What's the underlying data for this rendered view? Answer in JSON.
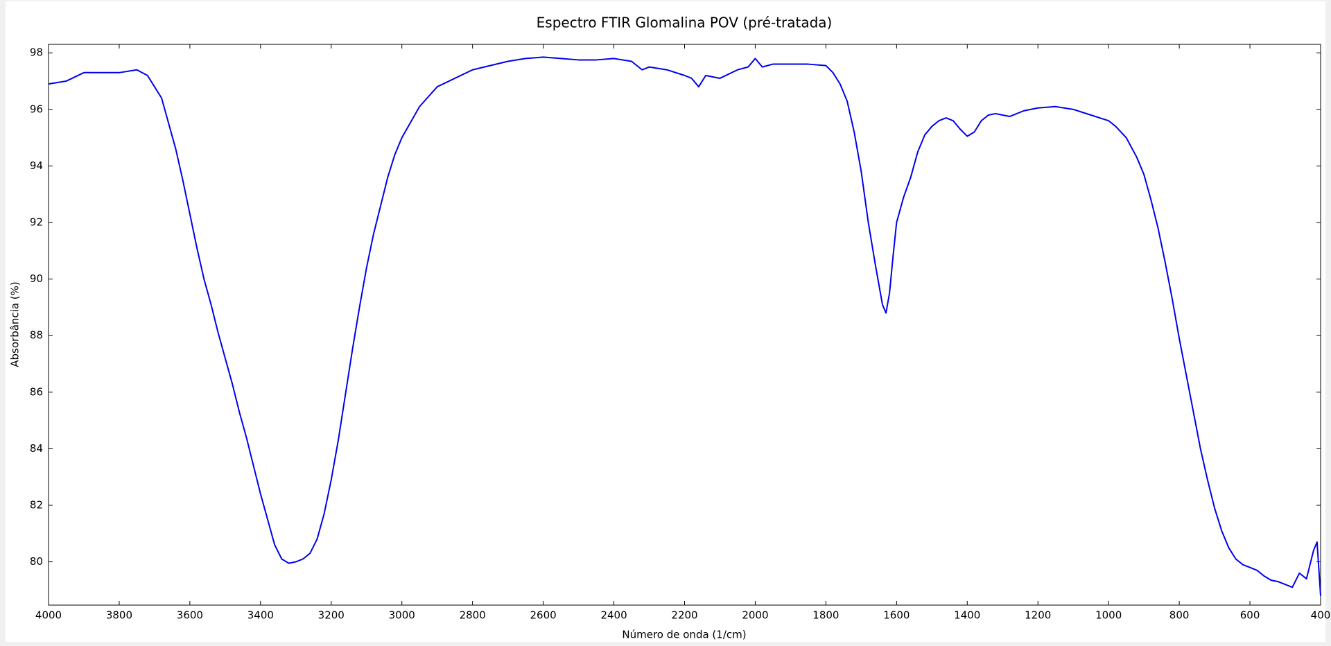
{
  "chart_data": {
    "type": "line",
    "title": "Espectro FTIR Glomalina POV (pré-tratada)",
    "x_label": "Número de onda (1/cm)",
    "y_label": "Absorbância (%)",
    "x": [
      4000,
      3950,
      3900,
      3850,
      3800,
      3750,
      3720,
      3700,
      3680,
      3660,
      3640,
      3620,
      3600,
      3580,
      3560,
      3540,
      3520,
      3500,
      3480,
      3460,
      3440,
      3420,
      3400,
      3380,
      3360,
      3340,
      3320,
      3300,
      3280,
      3260,
      3240,
      3220,
      3200,
      3180,
      3160,
      3140,
      3120,
      3100,
      3080,
      3060,
      3040,
      3020,
      3000,
      2950,
      2900,
      2850,
      2800,
      2750,
      2700,
      2650,
      2600,
      2550,
      2500,
      2450,
      2400,
      2350,
      2320,
      2300,
      2250,
      2200,
      2180,
      2160,
      2140,
      2100,
      2050,
      2020,
      2000,
      1980,
      1950,
      1900,
      1850,
      1800,
      1780,
      1760,
      1740,
      1720,
      1700,
      1680,
      1660,
      1640,
      1630,
      1620,
      1610,
      1600,
      1580,
      1560,
      1540,
      1520,
      1500,
      1480,
      1460,
      1440,
      1420,
      1400,
      1380,
      1360,
      1340,
      1320,
      1300,
      1280,
      1260,
      1240,
      1200,
      1150,
      1100,
      1050,
      1000,
      980,
      950,
      920,
      900,
      880,
      860,
      840,
      820,
      800,
      780,
      760,
      740,
      720,
      700,
      680,
      660,
      640,
      620,
      600,
      580,
      560,
      540,
      520,
      500,
      480,
      460,
      440,
      420,
      410,
      400
    ],
    "series": [
      {
        "name": "Glomalina POV",
        "color": "#0000ee",
        "values": [
          96.9,
          97.0,
          97.3,
          97.3,
          97.3,
          97.4,
          97.2,
          96.8,
          96.4,
          95.5,
          94.6,
          93.5,
          92.3,
          91.1,
          90.0,
          89.1,
          88.1,
          87.2,
          86.3,
          85.3,
          84.4,
          83.4,
          82.4,
          81.5,
          80.6,
          80.1,
          79.95,
          80.0,
          80.1,
          80.3,
          80.8,
          81.7,
          82.9,
          84.3,
          85.9,
          87.5,
          89.0,
          90.4,
          91.6,
          92.6,
          93.6,
          94.4,
          95.0,
          96.1,
          96.8,
          97.1,
          97.4,
          97.55,
          97.7,
          97.8,
          97.85,
          97.8,
          97.75,
          97.75,
          97.8,
          97.7,
          97.4,
          97.5,
          97.4,
          97.2,
          97.1,
          96.8,
          97.2,
          97.1,
          97.4,
          97.5,
          97.8,
          97.5,
          97.6,
          97.6,
          97.6,
          97.55,
          97.3,
          96.9,
          96.3,
          95.2,
          93.8,
          92.0,
          90.5,
          89.1,
          88.8,
          89.5,
          90.8,
          92.0,
          92.9,
          93.6,
          94.5,
          95.1,
          95.4,
          95.6,
          95.7,
          95.6,
          95.3,
          95.05,
          95.2,
          95.6,
          95.8,
          95.85,
          95.8,
          95.75,
          95.85,
          95.95,
          96.05,
          96.1,
          96.0,
          95.8,
          95.6,
          95.4,
          95.0,
          94.3,
          93.7,
          92.8,
          91.8,
          90.6,
          89.3,
          87.9,
          86.6,
          85.3,
          84.0,
          82.9,
          81.9,
          81.1,
          80.5,
          80.1,
          79.9,
          79.8,
          79.7,
          79.5,
          79.35,
          79.3,
          79.2,
          79.1,
          79.6,
          79.4,
          80.4,
          80.7,
          78.8
        ]
      }
    ],
    "xlim": [
      4000,
      400
    ],
    "ylim": [
      78.47,
      98.3
    ],
    "xticks": [
      4000,
      3800,
      3600,
      3400,
      3200,
      3000,
      2800,
      2600,
      2400,
      2200,
      2000,
      1800,
      1600,
      1400,
      1200,
      1000,
      800,
      600,
      400
    ],
    "yticks": [
      80,
      82,
      84,
      86,
      88,
      90,
      92,
      94,
      96,
      98
    ]
  }
}
